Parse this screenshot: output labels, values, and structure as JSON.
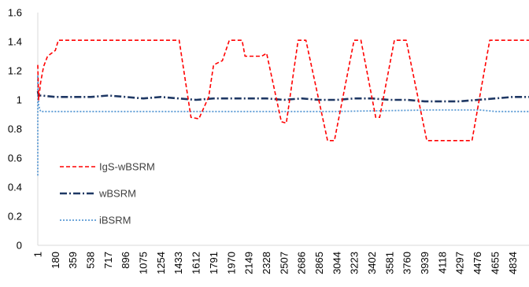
{
  "chart_data": {
    "type": "line",
    "title": "",
    "xlabel": "",
    "ylabel": "",
    "ylim": [
      0,
      1.6
    ],
    "y_ticks": [
      "0",
      "0.2",
      "0.4",
      "0.6",
      "0.8",
      "1",
      "1.2",
      "1.4",
      "1.6"
    ],
    "x_ticks": [
      "1",
      "180",
      "359",
      "538",
      "717",
      "896",
      "1075",
      "1254",
      "1433",
      "1612",
      "1791",
      "1970",
      "2149",
      "2328",
      "2507",
      "2686",
      "2865",
      "3044",
      "3223",
      "3402",
      "3581",
      "3760",
      "3939",
      "4118",
      "4297",
      "4476",
      "4655",
      "4834"
    ],
    "grid": false,
    "legend_position": "bottom-left",
    "series": [
      {
        "name": "IgS-wBSRM",
        "color": "#FF0000",
        "style": "dashed",
        "points": [
          [
            1,
            1.24
          ],
          [
            10,
            1.0
          ],
          [
            30,
            1.12
          ],
          [
            60,
            1.23
          ],
          [
            100,
            1.3
          ],
          [
            180,
            1.34
          ],
          [
            210,
            1.41
          ],
          [
            1440,
            1.41
          ],
          [
            1560,
            0.88
          ],
          [
            1640,
            0.87
          ],
          [
            1740,
            1.02
          ],
          [
            1790,
            1.24
          ],
          [
            1880,
            1.27
          ],
          [
            1950,
            1.41
          ],
          [
            2080,
            1.41
          ],
          [
            2110,
            1.3
          ],
          [
            2280,
            1.3
          ],
          [
            2330,
            1.32
          ],
          [
            2480,
            0.85
          ],
          [
            2530,
            0.84
          ],
          [
            2650,
            1.41
          ],
          [
            2730,
            1.41
          ],
          [
            2950,
            0.72
          ],
          [
            3020,
            0.72
          ],
          [
            3220,
            1.41
          ],
          [
            3290,
            1.41
          ],
          [
            3440,
            0.88
          ],
          [
            3480,
            0.88
          ],
          [
            3630,
            1.41
          ],
          [
            3750,
            1.41
          ],
          [
            3960,
            0.72
          ],
          [
            4420,
            0.72
          ],
          [
            4600,
            1.41
          ],
          [
            5000,
            1.41
          ]
        ]
      },
      {
        "name": "wBSRM",
        "color": "#1F3864",
        "style": "dashdot",
        "points": [
          [
            1,
            1.06
          ],
          [
            10,
            1.03
          ],
          [
            40,
            1.03
          ],
          [
            180,
            1.02
          ],
          [
            360,
            1.02
          ],
          [
            540,
            1.02
          ],
          [
            717,
            1.03
          ],
          [
            896,
            1.02
          ],
          [
            1075,
            1.01
          ],
          [
            1254,
            1.02
          ],
          [
            1433,
            1.01
          ],
          [
            1612,
            1.0
          ],
          [
            1791,
            1.01
          ],
          [
            1970,
            1.01
          ],
          [
            2149,
            1.01
          ],
          [
            2328,
            1.01
          ],
          [
            2507,
            1.0
          ],
          [
            2686,
            1.01
          ],
          [
            2865,
            1.0
          ],
          [
            3044,
            1.0
          ],
          [
            3223,
            1.01
          ],
          [
            3402,
            1.01
          ],
          [
            3581,
            1.0
          ],
          [
            3760,
            1.0
          ],
          [
            3939,
            0.99
          ],
          [
            4118,
            0.99
          ],
          [
            4297,
            0.99
          ],
          [
            4476,
            1.0
          ],
          [
            4655,
            1.01
          ],
          [
            4834,
            1.02
          ],
          [
            5000,
            1.02
          ]
        ]
      },
      {
        "name": "iBSRM",
        "color": "#5B9BD5",
        "style": "dotted",
        "points": [
          [
            1,
            0.48
          ],
          [
            1,
            1.17
          ],
          [
            10,
            0.96
          ],
          [
            30,
            0.92
          ],
          [
            180,
            0.92
          ],
          [
            1000,
            0.92
          ],
          [
            2000,
            0.92
          ],
          [
            3000,
            0.92
          ],
          [
            4000,
            0.93
          ],
          [
            4500,
            0.93
          ],
          [
            4660,
            0.92
          ],
          [
            5000,
            0.92
          ]
        ]
      }
    ]
  }
}
